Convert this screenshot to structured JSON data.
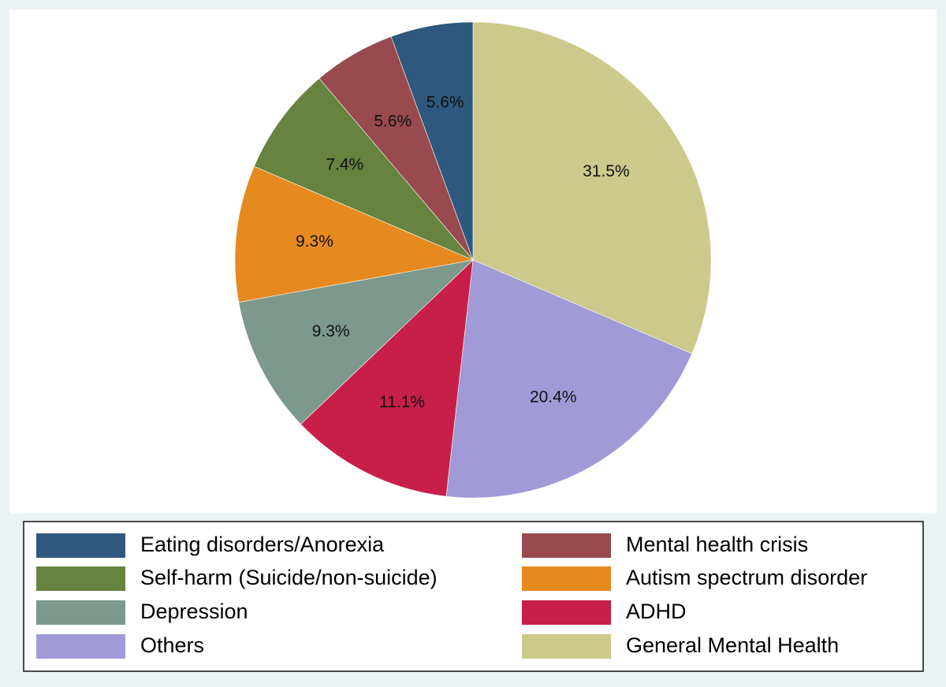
{
  "chart_data": {
    "type": "pie",
    "start": "12 o'clock",
    "direction": "clockwise",
    "legend_placement": "bottom",
    "legend_columns": 2,
    "slices": [
      {
        "name": "General Mental Health",
        "value": 31.5,
        "label": "31.5%",
        "color": "#cdc98c"
      },
      {
        "name": "Others",
        "value": 20.4,
        "label": "20.4%",
        "color": "#a09bd6"
      },
      {
        "name": "ADHD",
        "value": 11.1,
        "label": "11.1%",
        "color": "#c81f48"
      },
      {
        "name": "Depression",
        "value": 9.3,
        "label": "9.3%",
        "color": "#7d998e"
      },
      {
        "name": "Autism spectrum disorder",
        "value": 9.3,
        "label": "9.3%",
        "color": "#e68a1f"
      },
      {
        "name": "Self-harm (Suicide/non-suicide)",
        "value": 7.4,
        "label": "7.4%",
        "color": "#66833f"
      },
      {
        "name": "Mental health crisis",
        "value": 5.6,
        "label": "5.6%",
        "color": "#984a4f"
      },
      {
        "name": "Eating disorders/Anorexia",
        "value": 5.6,
        "label": "5.6%",
        "color": "#2e587d"
      }
    ],
    "legend_order": [
      "Eating disorders/Anorexia",
      "Mental health crisis",
      "Self-harm (Suicide/non-suicide)",
      "Autism spectrum disorder",
      "Depression",
      "ADHD",
      "Others",
      "General Mental Health"
    ]
  }
}
